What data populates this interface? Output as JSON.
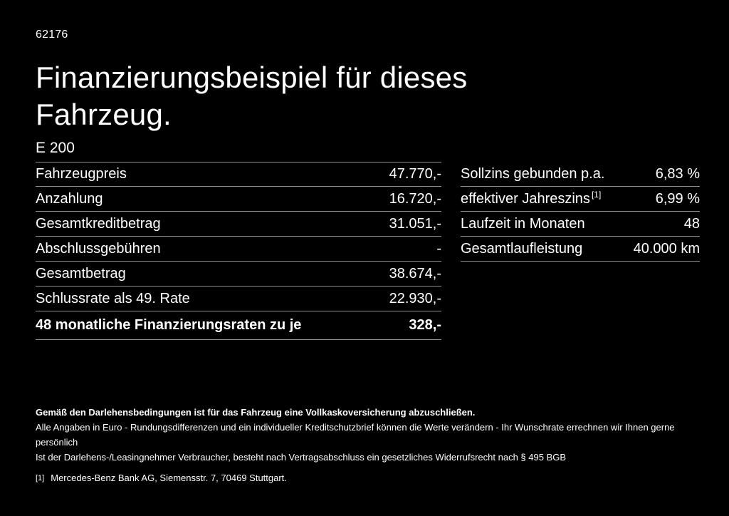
{
  "page": {
    "doc_number": "62176",
    "title": "Finanzierungsbeispiel für dieses Fahrzeug.",
    "model": "E 200"
  },
  "left_table": {
    "rows": [
      {
        "label": "Fahrzeugpreis",
        "value": "47.770,-"
      },
      {
        "label": "Anzahlung",
        "value": "16.720,-"
      },
      {
        "label": "Gesamtkreditbetrag",
        "value": "31.051,-"
      },
      {
        "label": "Abschlussgebühren",
        "value": "-"
      },
      {
        "label": "Gesamtbetrag",
        "value": "38.674,-"
      },
      {
        "label": "Schlussrate als 49. Rate",
        "value": "22.930,-"
      },
      {
        "label": "48 monatliche Finanzierungsraten zu je",
        "value": "328,-"
      }
    ]
  },
  "right_table": {
    "rows": [
      {
        "label": "Sollzins gebunden p.a.",
        "value": "6,83 %"
      },
      {
        "label": "effektiver Jahreszins",
        "sup_marker": "[1]",
        "value": "6,99 %"
      },
      {
        "label": "Laufzeit in Monaten",
        "value": "48"
      },
      {
        "label": "Gesamtlaufleistung",
        "value": "40.000 km"
      }
    ]
  },
  "fine_print": {
    "insurance_note": "Gemäß den Darlehensbedingungen ist für das Fahrzeug eine Vollkaskoversicherung abzuschließen.",
    "disclaimer_line1": "Alle Angaben in Euro - Rundungsdifferenzen und ein individueller Kreditschutzbrief können die Werte verändern - Ihr Wunschrate errechnen wir Ihnen gerne persönlich",
    "disclaimer_line2": "Ist der Darlehens-/Leasingnehmer Verbraucher, besteht nach Vertragsabschluss ein gesetzliches Widerrufsrecht nach § 495 BGB",
    "footnote_marker": "[1]",
    "footnote_text": "Mercedes-Benz Bank AG, Siemensstr. 7, 70469 Stuttgart."
  },
  "colors": {
    "background": "#000000",
    "text": "#ffffff",
    "divider": "#8f8f8f"
  }
}
